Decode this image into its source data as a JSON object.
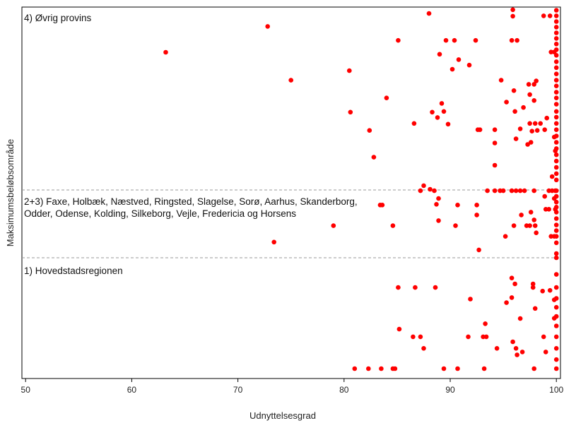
{
  "chart_data": {
    "type": "scatter",
    "xlabel": "Udnyttelsesgrad",
    "ylabel": "Maksimumsbeløbsområde",
    "xlim": [
      49.5,
      100.5
    ],
    "xticks": [
      50,
      60,
      70,
      80,
      90,
      100
    ],
    "grid": false,
    "marker_color": "#ff0000",
    "separator_color": "#999999",
    "groups": [
      {
        "label_lines": [
          "4) Øvrig provins"
        ],
        "points": [
          {
            "x": 63.2,
            "y": 0.76
          },
          {
            "x": 72.8,
            "y": 0.904
          },
          {
            "x": 75.0,
            "y": 0.604
          },
          {
            "x": 80.5,
            "y": 0.657
          },
          {
            "x": 80.6,
            "y": 0.426
          },
          {
            "x": 82.4,
            "y": 0.324
          },
          {
            "x": 82.8,
            "y": 0.175
          },
          {
            "x": 84.0,
            "y": 0.505
          },
          {
            "x": 85.1,
            "y": 0.826
          },
          {
            "x": 86.6,
            "y": 0.363
          },
          {
            "x": 88.0,
            "y": 0.976
          },
          {
            "x": 88.3,
            "y": 0.426
          },
          {
            "x": 88.8,
            "y": 0.396
          },
          {
            "x": 89.0,
            "y": 0.749
          },
          {
            "x": 89.2,
            "y": 0.475
          },
          {
            "x": 89.4,
            "y": 0.43
          },
          {
            "x": 89.6,
            "y": 0.826
          },
          {
            "x": 89.8,
            "y": 0.359
          },
          {
            "x": 90.2,
            "y": 0.665
          },
          {
            "x": 90.4,
            "y": 0.826
          },
          {
            "x": 90.8,
            "y": 0.719
          },
          {
            "x": 91.8,
            "y": 0.688
          },
          {
            "x": 92.4,
            "y": 0.826
          },
          {
            "x": 92.6,
            "y": 0.328
          },
          {
            "x": 92.8,
            "y": 0.328
          },
          {
            "x": 94.2,
            "y": 0.328
          },
          {
            "x": 94.2,
            "y": 0.254
          },
          {
            "x": 94.2,
            "y": 0.13
          },
          {
            "x": 94.8,
            "y": 0.604
          },
          {
            "x": 95.3,
            "y": 0.482
          },
          {
            "x": 95.8,
            "y": 0.826
          },
          {
            "x": 95.9,
            "y": 0.997
          },
          {
            "x": 95.9,
            "y": 0.961
          },
          {
            "x": 96.0,
            "y": 0.546
          },
          {
            "x": 96.1,
            "y": 0.43
          },
          {
            "x": 96.2,
            "y": 0.277
          },
          {
            "x": 96.3,
            "y": 0.826
          },
          {
            "x": 96.6,
            "y": 0.333
          },
          {
            "x": 96.9,
            "y": 0.452
          },
          {
            "x": 97.3,
            "y": 0.246
          },
          {
            "x": 97.4,
            "y": 0.581
          },
          {
            "x": 97.5,
            "y": 0.524
          },
          {
            "x": 97.5,
            "y": 0.363
          },
          {
            "x": 97.6,
            "y": 0.258
          },
          {
            "x": 97.7,
            "y": 0.32
          },
          {
            "x": 97.9,
            "y": 0.581
          },
          {
            "x": 97.9,
            "y": 0.491
          },
          {
            "x": 98.0,
            "y": 0.363
          },
          {
            "x": 98.1,
            "y": 0.6
          },
          {
            "x": 98.2,
            "y": 0.324
          },
          {
            "x": 98.5,
            "y": 0.363
          },
          {
            "x": 98.8,
            "y": 0.963
          },
          {
            "x": 98.9,
            "y": 0.328
          },
          {
            "x": 99.1,
            "y": 0.393
          },
          {
            "x": 99.4,
            "y": 0.963
          },
          {
            "x": 99.5,
            "y": 0.761
          },
          {
            "x": 99.6,
            "y": 0.067
          },
          {
            "x": 99.8,
            "y": 0.761
          },
          {
            "x": 99.8,
            "y": 0.287
          },
          {
            "x": 99.9,
            "y": 0.21
          },
          {
            "x": 100.0,
            "y": 0.994
          },
          {
            "x": 100.0,
            "y": 0.963
          },
          {
            "x": 100.0,
            "y": 0.931
          },
          {
            "x": 100.0,
            "y": 0.9
          },
          {
            "x": 100.0,
            "y": 0.868
          },
          {
            "x": 100.0,
            "y": 0.837
          },
          {
            "x": 100.0,
            "y": 0.806
          },
          {
            "x": 100.0,
            "y": 0.774
          },
          {
            "x": 100.0,
            "y": 0.743
          },
          {
            "x": 100.0,
            "y": 0.707
          },
          {
            "x": 100.0,
            "y": 0.674
          },
          {
            "x": 100.0,
            "y": 0.639
          },
          {
            "x": 100.0,
            "y": 0.604
          },
          {
            "x": 100.0,
            "y": 0.572
          },
          {
            "x": 100.0,
            "y": 0.537
          },
          {
            "x": 100.0,
            "y": 0.505
          },
          {
            "x": 100.0,
            "y": 0.47
          },
          {
            "x": 100.0,
            "y": 0.43
          },
          {
            "x": 100.0,
            "y": 0.398
          },
          {
            "x": 100.0,
            "y": 0.363
          },
          {
            "x": 100.0,
            "y": 0.328
          },
          {
            "x": 100.0,
            "y": 0.293
          },
          {
            "x": 100.0,
            "y": 0.258
          },
          {
            "x": 100.0,
            "y": 0.223
          },
          {
            "x": 100.0,
            "y": 0.188
          },
          {
            "x": 100.0,
            "y": 0.153
          },
          {
            "x": 100.0,
            "y": 0.118
          },
          {
            "x": 100.0,
            "y": 0.083
          },
          {
            "x": 100.0,
            "y": 0.048
          }
        ]
      },
      {
        "label_lines": [
          "2+3) Faxe, Holbæk, Næstved, Ringsted, Slagelse, Sorø, Aarhus, Skanderborg,",
          "Odder, Odense, Kolding, Silkeborg, Vejle, Fredericia og Horsens"
        ],
        "points": [
          {
            "x": 73.4,
            "y": 0.224
          },
          {
            "x": 79.0,
            "y": 0.459
          },
          {
            "x": 83.4,
            "y": 0.755
          },
          {
            "x": 83.6,
            "y": 0.755
          },
          {
            "x": 84.6,
            "y": 0.459
          },
          {
            "x": 87.2,
            "y": 0.959
          },
          {
            "x": 87.5,
            "y": 1.031
          },
          {
            "x": 88.1,
            "y": 0.98
          },
          {
            "x": 88.5,
            "y": 0.959
          },
          {
            "x": 88.7,
            "y": 0.765
          },
          {
            "x": 88.9,
            "y": 0.847
          },
          {
            "x": 88.9,
            "y": 0.531
          },
          {
            "x": 90.5,
            "y": 0.459
          },
          {
            "x": 90.7,
            "y": 0.755
          },
          {
            "x": 92.5,
            "y": 0.755
          },
          {
            "x": 92.5,
            "y": 0.612
          },
          {
            "x": 92.7,
            "y": 0.112
          },
          {
            "x": 93.5,
            "y": 0.959
          },
          {
            "x": 94.2,
            "y": 0.959
          },
          {
            "x": 94.7,
            "y": 0.959
          },
          {
            "x": 95.0,
            "y": 0.959
          },
          {
            "x": 95.2,
            "y": 0.306
          },
          {
            "x": 95.8,
            "y": 0.959
          },
          {
            "x": 96.0,
            "y": 0.459
          },
          {
            "x": 96.2,
            "y": 0.959
          },
          {
            "x": 96.6,
            "y": 0.959
          },
          {
            "x": 96.7,
            "y": 0.612
          },
          {
            "x": 97.0,
            "y": 0.959
          },
          {
            "x": 97.2,
            "y": 0.459
          },
          {
            "x": 97.5,
            "y": 0.459
          },
          {
            "x": 97.6,
            "y": 0.653
          },
          {
            "x": 97.9,
            "y": 0.959
          },
          {
            "x": 97.9,
            "y": 0.541
          },
          {
            "x": 98.0,
            "y": 0.459
          },
          {
            "x": 98.1,
            "y": 0.357
          },
          {
            "x": 98.9,
            "y": 0.878
          },
          {
            "x": 99.0,
            "y": 0.694
          },
          {
            "x": 99.3,
            "y": 0.694
          },
          {
            "x": 99.3,
            "y": 0.959
          },
          {
            "x": 99.5,
            "y": 0.306
          },
          {
            "x": 99.6,
            "y": 0.959
          },
          {
            "x": 99.8,
            "y": 0.847
          },
          {
            "x": 99.8,
            "y": 0.306
          },
          {
            "x": 99.9,
            "y": 0.959
          },
          {
            "x": 99.9,
            "y": 0.694
          },
          {
            "x": 100.0,
            "y": 0.959
          },
          {
            "x": 100.0,
            "y": 0.878
          },
          {
            "x": 100.0,
            "y": 0.796
          },
          {
            "x": 100.0,
            "y": 0.724
          },
          {
            "x": 100.0,
            "y": 0.653
          },
          {
            "x": 100.0,
            "y": 0.561
          },
          {
            "x": 100.0,
            "y": 0.469
          },
          {
            "x": 100.0,
            "y": 0.388
          },
          {
            "x": 100.0,
            "y": 0.306
          },
          {
            "x": 100.0,
            "y": 0.214
          },
          {
            "x": 100.0,
            "y": 0.061
          }
        ]
      },
      {
        "label_lines": [
          "1) Hovedstadsregionen"
        ],
        "points": [
          {
            "x": 81.0,
            "y": 0.006
          },
          {
            "x": 82.3,
            "y": 0.006
          },
          {
            "x": 83.5,
            "y": 0.006
          },
          {
            "x": 84.6,
            "y": 0.006
          },
          {
            "x": 84.8,
            "y": 0.006
          },
          {
            "x": 85.1,
            "y": 0.729
          },
          {
            "x": 85.2,
            "y": 0.358
          },
          {
            "x": 86.5,
            "y": 0.29
          },
          {
            "x": 86.7,
            "y": 0.729
          },
          {
            "x": 87.2,
            "y": 0.29
          },
          {
            "x": 87.5,
            "y": 0.187
          },
          {
            "x": 88.6,
            "y": 0.729
          },
          {
            "x": 89.4,
            "y": 0.006
          },
          {
            "x": 90.7,
            "y": 0.006
          },
          {
            "x": 91.7,
            "y": 0.29
          },
          {
            "x": 91.9,
            "y": 0.626
          },
          {
            "x": 93.1,
            "y": 0.29
          },
          {
            "x": 93.2,
            "y": 0.006
          },
          {
            "x": 93.3,
            "y": 0.406
          },
          {
            "x": 93.4,
            "y": 0.29
          },
          {
            "x": 94.4,
            "y": 0.187
          },
          {
            "x": 95.3,
            "y": 0.594
          },
          {
            "x": 95.8,
            "y": 0.813
          },
          {
            "x": 95.8,
            "y": 0.639
          },
          {
            "x": 95.9,
            "y": 0.245
          },
          {
            "x": 96.1,
            "y": 0.761
          },
          {
            "x": 96.2,
            "y": 0.187
          },
          {
            "x": 96.3,
            "y": 0.129
          },
          {
            "x": 96.6,
            "y": 0.452
          },
          {
            "x": 96.8,
            "y": 0.155
          },
          {
            "x": 97.8,
            "y": 0.761
          },
          {
            "x": 97.8,
            "y": 0.729
          },
          {
            "x": 97.9,
            "y": 0.006
          },
          {
            "x": 98.0,
            "y": 0.542
          },
          {
            "x": 98.7,
            "y": 0.697
          },
          {
            "x": 98.8,
            "y": 0.29
          },
          {
            "x": 99.0,
            "y": 0.155
          },
          {
            "x": 99.4,
            "y": 0.703
          },
          {
            "x": 99.8,
            "y": 0.619
          },
          {
            "x": 99.8,
            "y": 0.455
          },
          {
            "x": 100.0,
            "y": 0.994
          },
          {
            "x": 100.0,
            "y": 0.845
          },
          {
            "x": 100.0,
            "y": 0.729
          },
          {
            "x": 100.0,
            "y": 0.632
          },
          {
            "x": 100.0,
            "y": 0.552
          },
          {
            "x": 100.0,
            "y": 0.471
          },
          {
            "x": 100.0,
            "y": 0.387
          },
          {
            "x": 100.0,
            "y": 0.29
          },
          {
            "x": 100.0,
            "y": 0.187
          },
          {
            "x": 100.0,
            "y": 0.087
          },
          {
            "x": 100.0,
            "y": 0.006
          }
        ]
      }
    ]
  }
}
